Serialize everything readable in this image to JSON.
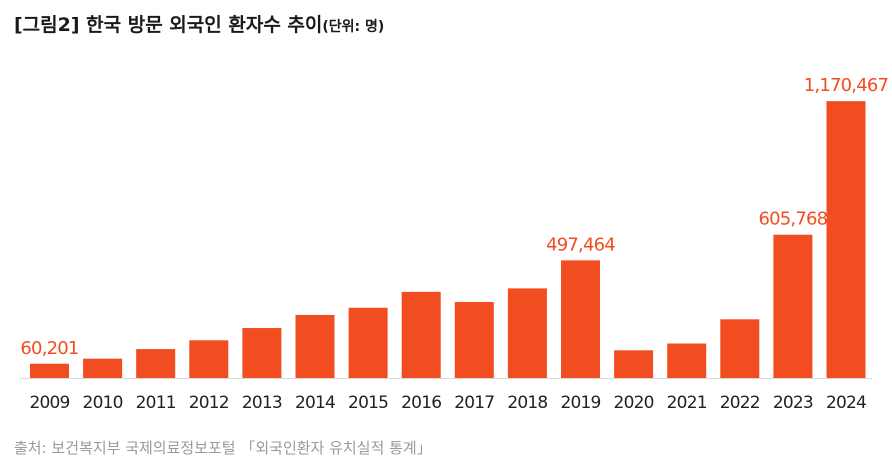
{
  "chart_data": {
    "type": "bar",
    "title": "[그림2] 한국 방문 외국인 환자수 추이",
    "unit_label": "(단위: 명)",
    "source": "출처: 보건복지부 국제의료정보포털 「외국인환자 유치실적 통계」",
    "categories": [
      "2009",
      "2010",
      "2011",
      "2012",
      "2013",
      "2014",
      "2015",
      "2016",
      "2017",
      "2018",
      "2019",
      "2020",
      "2021",
      "2022",
      "2023",
      "2024"
    ],
    "values": [
      60201,
      81789,
      122297,
      159464,
      211218,
      266501,
      296889,
      364189,
      321574,
      378967,
      497464,
      117069,
      145842,
      248110,
      605768,
      1170467
    ],
    "data_labels": {
      "0": "60,201",
      "10": "497,464",
      "14": "605,768",
      "15": "1,170,467"
    },
    "bar_color": "#f24d20",
    "label_color": "#f24d20",
    "ylim": [
      0,
      1260000
    ],
    "xlabel": "",
    "ylabel": ""
  }
}
